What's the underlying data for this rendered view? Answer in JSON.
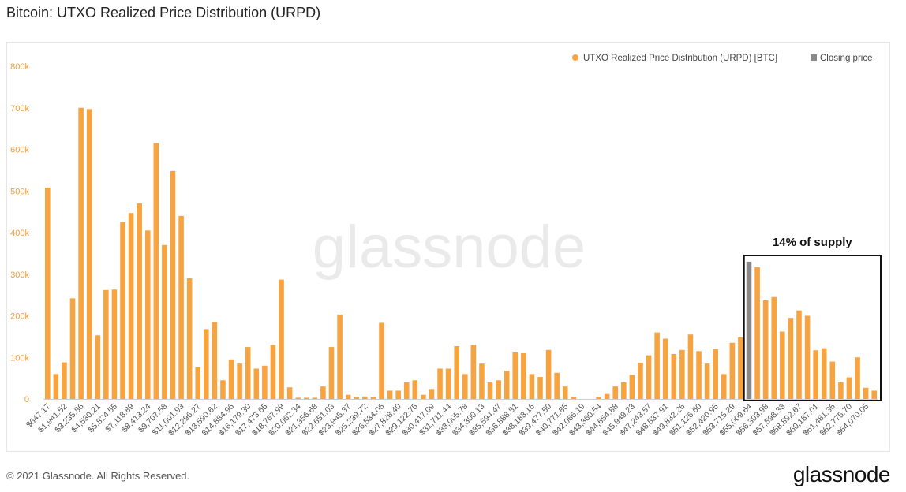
{
  "page": {
    "title": "Bitcoin: UTXO Realized Price Distribution (URPD)",
    "footer": "© 2021 Glassnode. All Rights Reserved.",
    "logo": "glassnode",
    "watermark": "glassnode"
  },
  "colors": {
    "bar": "#f7a340",
    "closing": "#888888",
    "axis_text": "#e8a040",
    "box": "#111111"
  },
  "chart_data": {
    "type": "bar",
    "ylim": [
      0,
      800000
    ],
    "yticks": [
      {
        "value": 0,
        "label": "0"
      },
      {
        "value": 100000,
        "label": "100k"
      },
      {
        "value": 200000,
        "label": "200k"
      },
      {
        "value": 300000,
        "label": "300k"
      },
      {
        "value": 400000,
        "label": "400k"
      },
      {
        "value": 500000,
        "label": "500k"
      },
      {
        "value": 600000,
        "label": "600k"
      },
      {
        "value": 700000,
        "label": "700k"
      },
      {
        "value": 800000,
        "label": "800k"
      }
    ],
    "xtick_labels": [
      "$647.17",
      "$1,941.52",
      "$3,235.86",
      "$4,530.21",
      "$5,824.55",
      "$7,118.89",
      "$8,413.24",
      "$9,707.58",
      "$11,001.93",
      "$12,296.27",
      "$13,590.62",
      "$14,884.96",
      "$16,179.30",
      "$17,473.65",
      "$18,767.99",
      "$20,062.34",
      "$21,356.68",
      "$22,651.03",
      "$23,945.37",
      "$25,239.72",
      "$26,534.06",
      "$27,828.40",
      "$29,122.75",
      "$30,417.09",
      "$31,711.44",
      "$33,005.78",
      "$34,300.13",
      "$35,594.47",
      "$36,888.81",
      "$38,183.16",
      "$39,477.50",
      "$40,771.85",
      "$42,066.19",
      "$43,360.54",
      "$44,654.88",
      "$45,949.23",
      "$47,243.57",
      "$48,537.91",
      "$49,832.26",
      "$51,126.60",
      "$52,420.95",
      "$53,715.29",
      "$55,009.64",
      "$56,303.98",
      "$57,598.33",
      "$58,892.67",
      "$60,187.01",
      "$61,481.36",
      "$62,775.70",
      "$64,070.05"
    ],
    "values": [
      508000,
      60000,
      88000,
      242000,
      700000,
      697000,
      153000,
      262000,
      263000,
      425000,
      447000,
      470000,
      405000,
      615000,
      370000,
      548000,
      440000,
      290000,
      77000,
      168000,
      185000,
      45000,
      95000,
      85000,
      125000,
      73000,
      80000,
      130000,
      287000,
      28000,
      3000,
      3000,
      3000,
      30000,
      125000,
      203000,
      10000,
      5000,
      6000,
      5000,
      183000,
      20000,
      20000,
      40000,
      45000,
      10000,
      24000,
      73000,
      73000,
      127000,
      60000,
      130000,
      85000,
      40000,
      45000,
      68000,
      112000,
      110000,
      60000,
      53000,
      118000,
      63000,
      30000,
      5000,
      0,
      0,
      5000,
      12000,
      30000,
      40000,
      58000,
      87000,
      105000,
      160000,
      145000,
      108000,
      118000,
      155000,
      115000,
      85000,
      120000,
      60000,
      135000,
      148000,
      330000,
      317000,
      237000,
      245000,
      162000,
      195000,
      213000,
      200000,
      117000,
      122000,
      90000,
      40000,
      52000,
      100000,
      27000,
      20000
    ],
    "closing_index": 84,
    "series": [
      {
        "name": "UTXO Realized Price Distribution (URPD) [BTC]",
        "color": "#f7a340"
      },
      {
        "name": "Closing price",
        "color": "#888888"
      }
    ],
    "legend_position": "top-right",
    "grid": false,
    "annotation": {
      "label": "14% of supply",
      "from_index": 84,
      "to_index": 99,
      "top_value": 345000
    }
  }
}
